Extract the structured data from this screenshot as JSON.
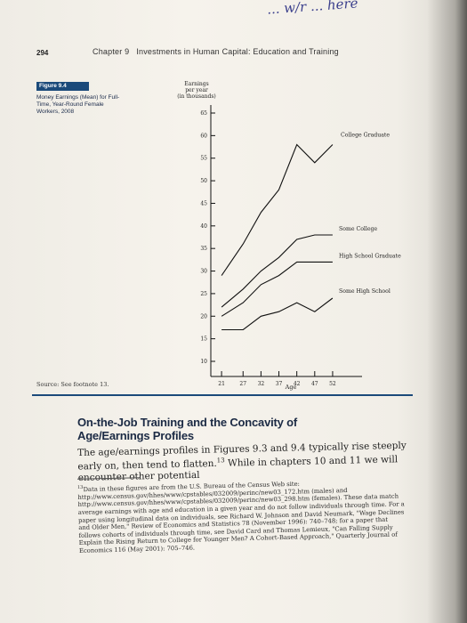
{
  "handwriting": "... w/r ... here",
  "header": {
    "page_number": "294",
    "chapter": "Chapter 9",
    "chapter_title": "Investments in Human Capital: Education and Training"
  },
  "figure": {
    "label": "Figure 9.4",
    "caption": "Money Earnings (Mean) for Full-Time, Year-Round Female Workers, 2008",
    "source": "Source: See footnote 13."
  },
  "chart_data": {
    "type": "line",
    "title": "",
    "ylabel": "Earnings per year (in thousands)",
    "xlabel": "Age",
    "x": [
      21,
      27,
      32,
      37,
      42,
      47,
      52
    ],
    "x_ticks": [
      "21",
      "27",
      "32",
      "37",
      "42",
      "47",
      "52"
    ],
    "y_ticks": [
      "65",
      "60",
      "55",
      "50",
      "45",
      "40",
      "35",
      "30",
      "25",
      "20",
      "15",
      "10"
    ],
    "ylim": [
      10,
      65
    ],
    "grid": false,
    "series": [
      {
        "name": "College Graduate",
        "values": [
          29,
          36,
          43,
          48,
          58,
          54,
          58
        ]
      },
      {
        "name": "Some College",
        "values": [
          22,
          26,
          30,
          33,
          37,
          38,
          38
        ]
      },
      {
        "name": "High School Graduate",
        "values": [
          20,
          23,
          27,
          29,
          32,
          32,
          32
        ]
      },
      {
        "name": "Some High School",
        "values": [
          17,
          17,
          20,
          21,
          23,
          21,
          24
        ]
      }
    ]
  },
  "section": {
    "heading": "On-the-Job Training and the Concavity of Age/Earnings Profiles",
    "paragraph_a": "The age/earnings profiles in Figures 9.3 and 9.4 typically rise steeply early on, then tend to flatten.",
    "paragraph_sup": "13",
    "paragraph_b": " While in chapters 10 and 11 we will encounter other potential"
  },
  "footnote": {
    "number": "13",
    "text": "Data in these figures are from the U.S. Bureau of the Census Web site: http://www.census.gov/hhes/www/cpstables/032009/perinc/new03_172.htm (males) and http://www.census.gov/hhes/www/cpstables/032009/perinc/new03_298.htm (females). These data match average earnings with age and education in a given year and do not follow individuals through time. For a paper using longitudinal data on individuals, see Richard W. Johnson and David Neumark, \"Wage Declines and Older Men,\" Review of Economics and Statistics 78 (November 1996): 740–748; for a paper that follows cohorts of individuals through time, see David Card and Thomas Lemieux, \"Can Falling Supply Explain the Rising Return to College for Younger Men? A Cohort-Based Approach,\" Quarterly Journal of Economics 116 (May 2001): 705–746."
  }
}
